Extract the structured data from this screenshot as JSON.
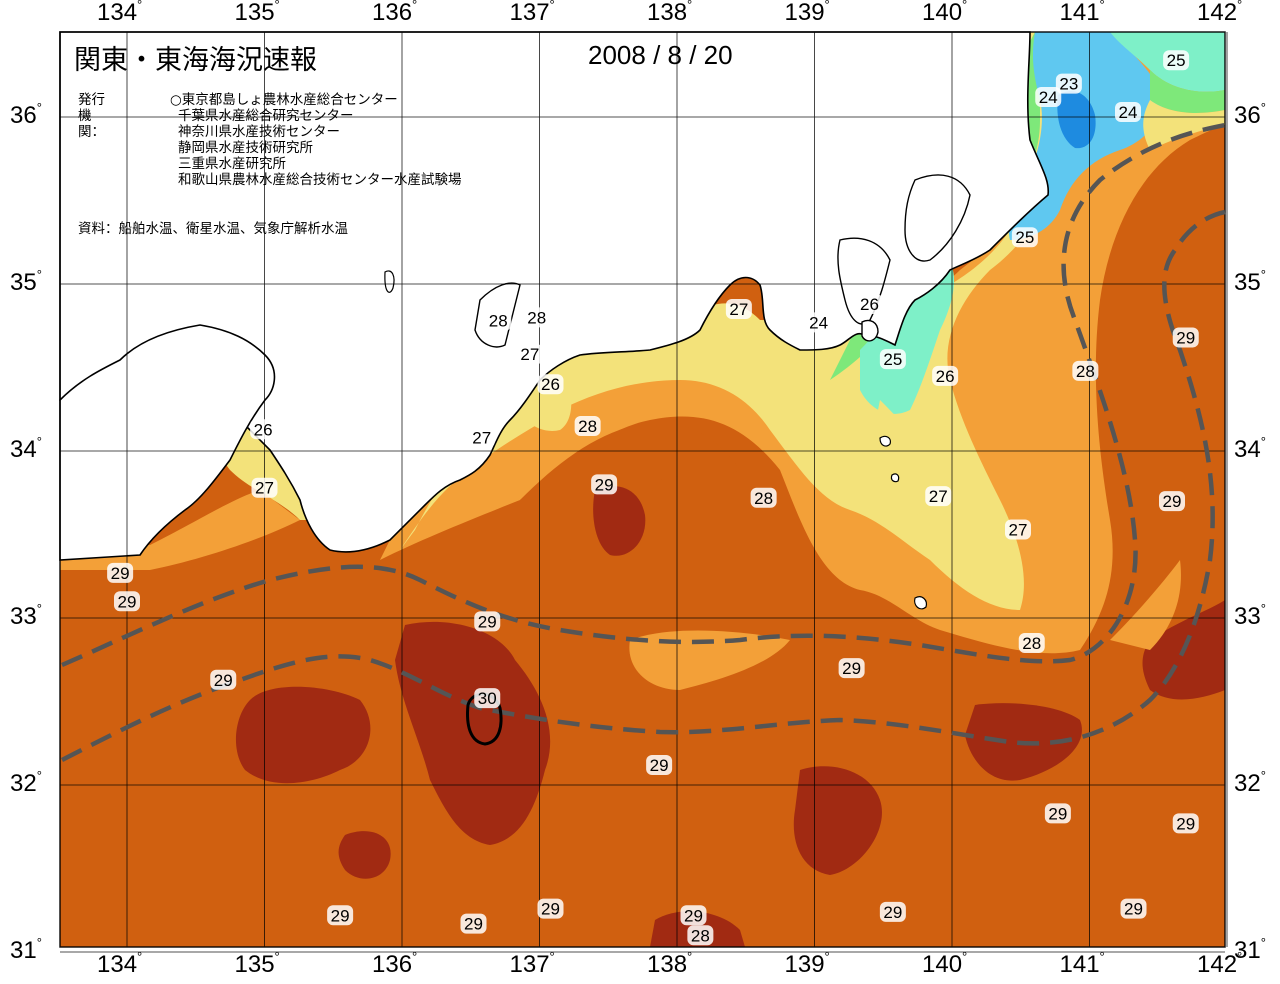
{
  "header": {
    "title": "関東・東海海況速報",
    "date": "2008 / 8 / 20"
  },
  "issuer": {
    "label": "発行機関：",
    "marker": "○",
    "orgs": [
      "東京都島しょ農林水産総合センター",
      "千葉県水産総合研究センター",
      "神奈川県水産技術センター",
      "静岡県水産技術研究所",
      "三重県水産研究所",
      "和歌山県農林水産総合技術センター水産試験場"
    ]
  },
  "source": "資料：船舶水温、衛星水温、気象庁解析水温",
  "axes": {
    "lon_ticks": [
      "134",
      "135",
      "136",
      "137",
      "138",
      "139",
      "140",
      "141",
      "142"
    ],
    "lat_ticks": [
      "36",
      "35",
      "34",
      "33",
      "32",
      "31"
    ],
    "degree_symbol": "°"
  },
  "temperature_scale_colors": {
    "23": "#1e8be0",
    "24": "#5fc8f0",
    "25": "#7ef0c8",
    "26": "#7ee87a",
    "27": "#f3e27a",
    "28": "#f3a038",
    "29": "#d06010",
    "30": "#a12a12",
    "land": "#ffffff",
    "coast": "#000000",
    "kuroshio_axis": "#555555"
  },
  "contour_labels": [
    {
      "text": "23",
      "lon": 140.85,
      "lat": 36.2
    },
    {
      "text": "24",
      "lon": 140.7,
      "lat": 36.12
    },
    {
      "text": "24",
      "lon": 141.28,
      "lat": 36.03
    },
    {
      "text": "25",
      "lon": 141.63,
      "lat": 36.34
    },
    {
      "text": "25",
      "lon": 140.53,
      "lat": 35.28
    },
    {
      "text": "26",
      "lon": 134.99,
      "lat": 34.13
    },
    {
      "text": "27",
      "lon": 135.0,
      "lat": 33.78
    },
    {
      "text": "28",
      "lon": 136.7,
      "lat": 34.78
    },
    {
      "text": "28",
      "lon": 136.98,
      "lat": 34.8
    },
    {
      "text": "27",
      "lon": 136.93,
      "lat": 34.58
    },
    {
      "text": "26",
      "lon": 137.08,
      "lat": 34.4
    },
    {
      "text": "27",
      "lon": 136.58,
      "lat": 34.08
    },
    {
      "text": "28",
      "lon": 137.35,
      "lat": 34.15
    },
    {
      "text": "27",
      "lon": 138.45,
      "lat": 34.85
    },
    {
      "text": "24",
      "lon": 139.03,
      "lat": 34.77
    },
    {
      "text": "26",
      "lon": 139.4,
      "lat": 34.88
    },
    {
      "text": "25",
      "lon": 139.57,
      "lat": 34.55
    },
    {
      "text": "26",
      "lon": 139.95,
      "lat": 34.45
    },
    {
      "text": "29",
      "lon": 137.47,
      "lat": 33.8
    },
    {
      "text": "28",
      "lon": 138.63,
      "lat": 33.72
    },
    {
      "text": "27",
      "lon": 139.9,
      "lat": 33.73
    },
    {
      "text": "27",
      "lon": 140.48,
      "lat": 33.53
    },
    {
      "text": "28",
      "lon": 140.97,
      "lat": 34.48
    },
    {
      "text": "29",
      "lon": 141.7,
      "lat": 34.68
    },
    {
      "text": "29",
      "lon": 141.6,
      "lat": 33.7
    },
    {
      "text": "29",
      "lon": 133.95,
      "lat": 33.27
    },
    {
      "text": "29",
      "lon": 134.0,
      "lat": 33.1
    },
    {
      "text": "29",
      "lon": 136.62,
      "lat": 32.98
    },
    {
      "text": "28",
      "lon": 140.58,
      "lat": 32.85
    },
    {
      "text": "29",
      "lon": 134.7,
      "lat": 32.63
    },
    {
      "text": "30",
      "lon": 136.62,
      "lat": 32.52
    },
    {
      "text": "29",
      "lon": 139.27,
      "lat": 32.7
    },
    {
      "text": "29",
      "lon": 137.87,
      "lat": 32.12
    },
    {
      "text": "29",
      "lon": 140.77,
      "lat": 31.83
    },
    {
      "text": "29",
      "lon": 141.7,
      "lat": 31.77
    },
    {
      "text": "29",
      "lon": 135.55,
      "lat": 31.22
    },
    {
      "text": "29",
      "lon": 136.52,
      "lat": 31.17
    },
    {
      "text": "29",
      "lon": 137.08,
      "lat": 31.26
    },
    {
      "text": "29",
      "lon": 138.12,
      "lat": 31.22
    },
    {
      "text": "28",
      "lon": 138.17,
      "lat": 31.1
    },
    {
      "text": "29",
      "lon": 139.57,
      "lat": 31.24
    },
    {
      "text": "29",
      "lon": 141.32,
      "lat": 31.26
    }
  ]
}
